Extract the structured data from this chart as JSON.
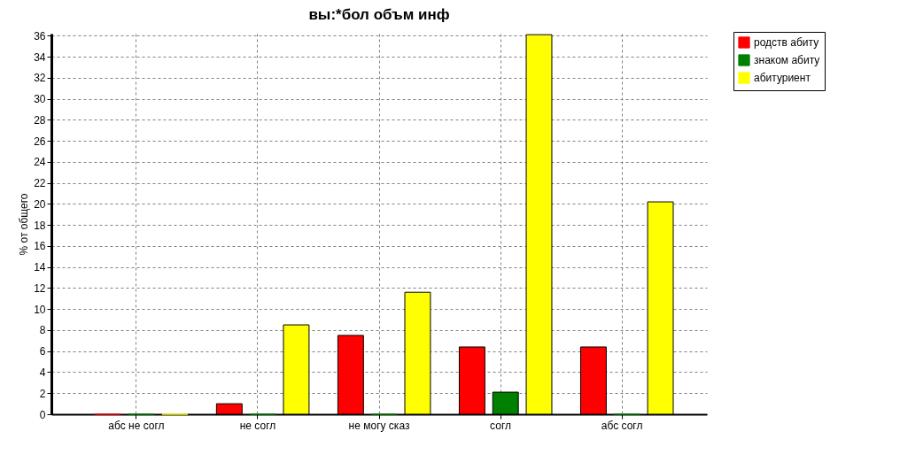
{
  "chart_data": {
    "type": "bar",
    "title": "вы:*бол объм инф",
    "ylabel": "% от общего",
    "categories": [
      "абс не согл",
      "не согл",
      "не могу сказ",
      "согл",
      "абс согл"
    ],
    "series": [
      {
        "name": "родств абиту",
        "color": "#ff0000",
        "values": [
          0,
          1.0,
          7.5,
          6.4,
          6.4
        ]
      },
      {
        "name": "знаком абиту",
        "color": "#008000",
        "values": [
          0,
          0,
          0,
          2.1,
          0
        ]
      },
      {
        "name": "абитуриент",
        "color": "#ffff00",
        "values": [
          0,
          8.5,
          11.6,
          36.1,
          20.2
        ]
      }
    ],
    "ylim": [
      0,
      36.2
    ],
    "yticks": [
      0,
      2,
      4,
      6,
      8,
      10,
      12,
      14,
      16,
      18,
      20,
      22,
      24,
      26,
      28,
      30,
      32,
      34,
      36
    ],
    "grid": true,
    "legend": "top right"
  }
}
